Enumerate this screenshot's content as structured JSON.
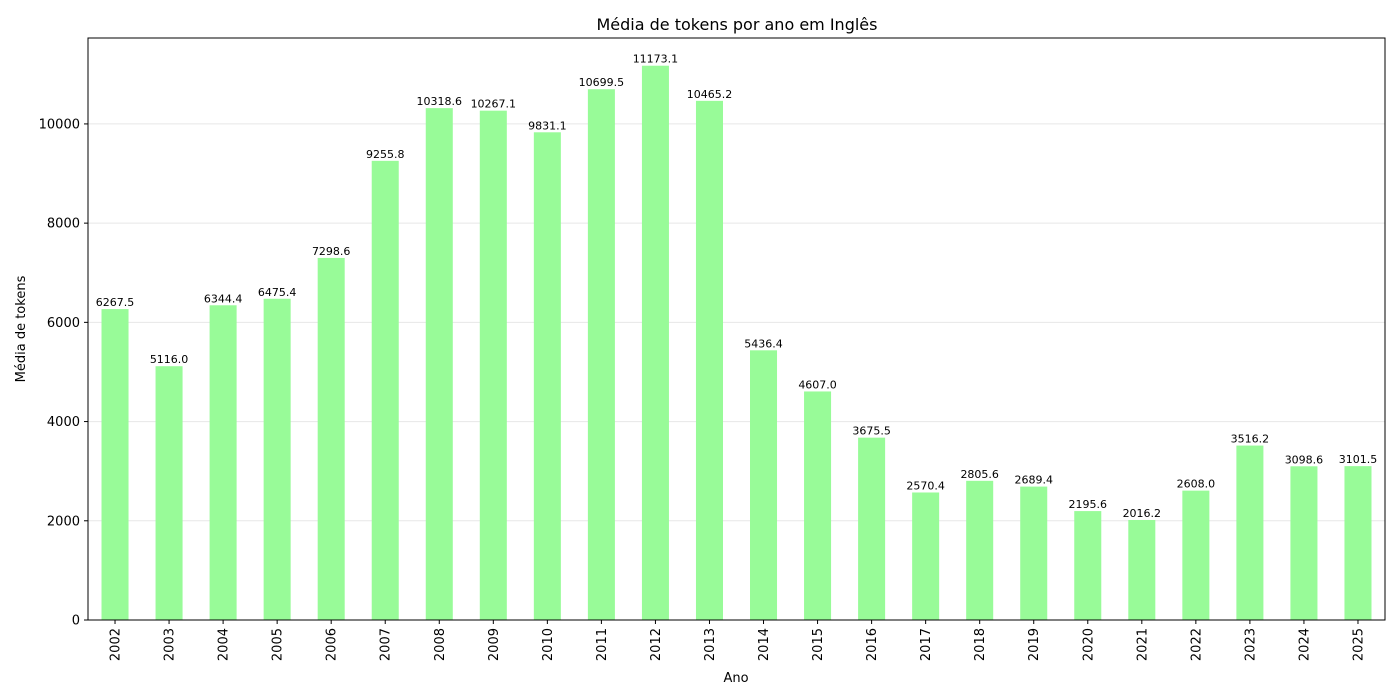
{
  "chart_data": {
    "type": "bar",
    "title": "Média de tokens por ano em Inglês",
    "xlabel": "Ano",
    "ylabel": "Média de tokens",
    "categories": [
      "2002",
      "2003",
      "2004",
      "2005",
      "2006",
      "2007",
      "2008",
      "2009",
      "2010",
      "2011",
      "2012",
      "2013",
      "2014",
      "2015",
      "2016",
      "2017",
      "2018",
      "2019",
      "2020",
      "2021",
      "2022",
      "2023",
      "2024",
      "2025"
    ],
    "values": [
      6267.5,
      5116.0,
      6344.4,
      6475.4,
      7298.6,
      9255.8,
      10318.6,
      10267.1,
      9831.1,
      10699.5,
      11173.1,
      10465.2,
      5436.4,
      4607.0,
      3675.5,
      2570.4,
      2805.6,
      2689.4,
      2195.6,
      2016.2,
      2608.0,
      3516.2,
      3098.6,
      3101.5
    ],
    "data_labels": [
      "6267.5",
      "5116.0",
      "6344.4",
      "6475.4",
      "7298.6",
      "9255.8",
      "10318.6",
      "10267.1",
      "9831.1",
      "10699.5",
      "11173.1",
      "10465.2",
      "5436.4",
      "4607.0",
      "3675.5",
      "2570.4",
      "2805.6",
      "2689.4",
      "2195.6",
      "2016.2",
      "2608.0",
      "3516.2",
      "3098.6",
      "3101.5"
    ],
    "yticks": [
      0,
      2000,
      4000,
      6000,
      8000,
      10000
    ],
    "ytick_labels": [
      "0",
      "2000",
      "4000",
      "6000",
      "8000",
      "10000"
    ],
    "ylim": [
      0,
      11732
    ],
    "grid": "y",
    "bar_color": "#98fb98"
  }
}
